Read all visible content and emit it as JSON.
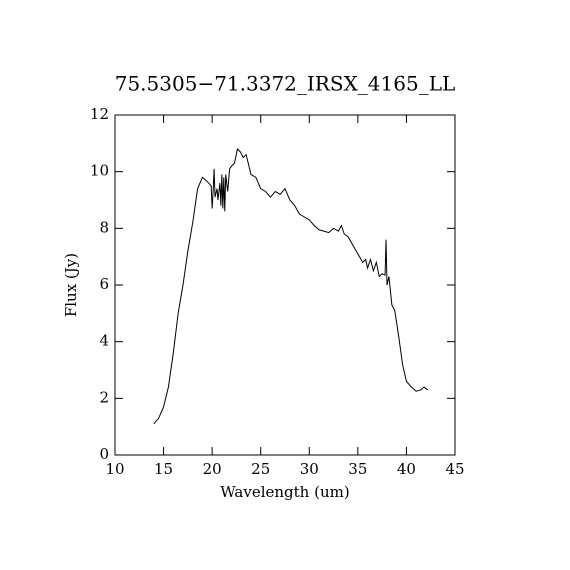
{
  "chart_data": {
    "type": "line",
    "title": "75.5305−71.3372_IRSX_4165_LL",
    "x_label": "Wavelength (um)",
    "y_label": "Flux (Jy)",
    "xlim": [
      10,
      45
    ],
    "xticks": [
      10,
      15,
      20,
      25,
      30,
      35,
      40,
      45
    ],
    "ylim": [
      0,
      12
    ],
    "yticks": [
      0,
      2,
      4,
      6,
      8,
      10,
      12
    ],
    "series": [
      {
        "color": "#000000",
        "x": [
          14.0,
          14.5,
          15.0,
          15.5,
          16.0,
          16.5,
          17.0,
          17.5,
          18.0,
          18.5,
          19.0,
          19.5,
          19.9,
          20.0,
          20.1,
          20.2,
          20.3,
          20.5,
          20.6,
          20.8,
          20.9,
          21.0,
          21.1,
          21.2,
          21.3,
          21.4,
          21.6,
          21.8,
          22.0,
          22.3,
          22.6,
          22.9,
          23.2,
          23.5,
          24.0,
          24.5,
          25.0,
          25.5,
          26.0,
          26.5,
          27.0,
          27.5,
          28.0,
          28.5,
          29.0,
          29.5,
          30.0,
          30.5,
          31.0,
          31.5,
          32.0,
          32.5,
          33.0,
          33.3,
          33.6,
          34.0,
          34.5,
          35.0,
          35.5,
          35.8,
          36.0,
          36.3,
          36.6,
          36.9,
          37.2,
          37.5,
          37.8,
          37.9,
          38.0,
          38.2,
          38.5,
          38.8,
          39.2,
          39.6,
          40.0,
          40.5,
          41.0,
          41.5,
          41.8,
          42.2
        ],
        "values": [
          1.1,
          1.3,
          1.7,
          2.4,
          3.6,
          5.0,
          6.0,
          7.2,
          8.2,
          9.4,
          9.8,
          9.65,
          9.5,
          8.7,
          9.3,
          10.1,
          9.1,
          9.4,
          9.0,
          9.6,
          8.8,
          9.9,
          8.7,
          9.8,
          8.6,
          9.9,
          9.3,
          10.1,
          10.2,
          10.3,
          10.8,
          10.7,
          10.5,
          10.6,
          9.9,
          9.8,
          9.4,
          9.3,
          9.1,
          9.3,
          9.2,
          9.4,
          9.0,
          8.8,
          8.5,
          8.4,
          8.3,
          8.1,
          7.95,
          7.9,
          7.85,
          8.0,
          7.9,
          8.1,
          7.8,
          7.7,
          7.4,
          7.1,
          6.8,
          6.9,
          6.6,
          6.9,
          6.5,
          6.8,
          6.3,
          6.4,
          6.35,
          7.6,
          6.0,
          6.3,
          5.3,
          5.1,
          4.2,
          3.2,
          2.6,
          2.4,
          2.25,
          2.3,
          2.4,
          2.3
        ]
      }
    ]
  }
}
